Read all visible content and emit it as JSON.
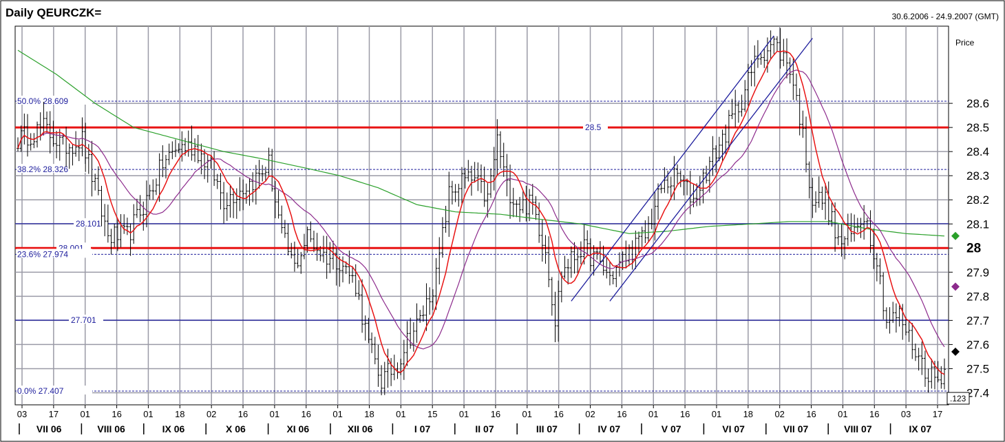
{
  "chart_data": {
    "type": "line",
    "subtype": "ohlc-bars",
    "title": "Daily QEURCZK=",
    "date_range": "30.6.2006 - 24.9.2007 (GMT)",
    "ylabel": "Price",
    "ylim": [
      27.35,
      28.92
    ],
    "y_ticks": [
      "27.4",
      "27.5",
      "27.6",
      "27.7",
      "27.8",
      "27.9",
      "28",
      "28.1",
      "28.2",
      "28.3",
      "28.4",
      "28.5",
      "28.6"
    ],
    "y_tick_values": [
      27.4,
      27.5,
      27.6,
      27.7,
      27.8,
      27.9,
      28.0,
      28.1,
      28.2,
      28.3,
      28.4,
      28.5,
      28.6
    ],
    "bold_tick": "28",
    "x_days": [
      "03",
      "17",
      "01",
      "16",
      "01",
      "18",
      "02",
      "16",
      "01",
      "16",
      "01",
      "18",
      "01",
      "15",
      "01",
      "16",
      "01",
      "16",
      "02",
      "16",
      "01",
      "16",
      "01",
      "18",
      "02",
      "16",
      "01",
      "16",
      "03",
      "17"
    ],
    "x_months": [
      "VII 06",
      "VIII 06",
      "IX 06",
      "X 06",
      "XI 06",
      "XII 06",
      "I 07",
      "II 07",
      "III 07",
      "IV 07",
      "V 07",
      "VI 07",
      "VII 07",
      "VIII 07",
      "IX 07"
    ],
    "corner_label": ".123",
    "grid": true,
    "price_anchors": [
      [
        0,
        28.45
      ],
      [
        8,
        28.5
      ],
      [
        14,
        28.42
      ],
      [
        20,
        28.45
      ],
      [
        24,
        28.25
      ],
      [
        28,
        28.05
      ],
      [
        34,
        28.05
      ],
      [
        40,
        28.2
      ],
      [
        45,
        28.35
      ],
      [
        50,
        28.42
      ],
      [
        55,
        28.42
      ],
      [
        60,
        28.33
      ],
      [
        64,
        28.2
      ],
      [
        70,
        28.25
      ],
      [
        75,
        28.3
      ],
      [
        78,
        28.35
      ],
      [
        82,
        28.05
      ],
      [
        86,
        27.92
      ],
      [
        90,
        28.05
      ],
      [
        95,
        27.97
      ],
      [
        100,
        27.95
      ],
      [
        105,
        27.85
      ],
      [
        109,
        27.6
      ],
      [
        113,
        27.45
      ],
      [
        118,
        27.52
      ],
      [
        121,
        27.62
      ],
      [
        125,
        27.7
      ],
      [
        130,
        27.88
      ],
      [
        134,
        28.22
      ],
      [
        138,
        28.28
      ],
      [
        142,
        28.28
      ],
      [
        146,
        28.2
      ],
      [
        149,
        28.45
      ],
      [
        152,
        28.25
      ],
      [
        156,
        28.18
      ],
      [
        160,
        28.18
      ],
      [
        164,
        28.0
      ],
      [
        167,
        27.7
      ],
      [
        169,
        27.9
      ],
      [
        175,
        28.0
      ],
      [
        180,
        27.95
      ],
      [
        184,
        27.88
      ],
      [
        190,
        27.98
      ],
      [
        195,
        28.05
      ],
      [
        200,
        28.25
      ],
      [
        205,
        28.3
      ],
      [
        210,
        28.2
      ],
      [
        215,
        28.35
      ],
      [
        220,
        28.48
      ],
      [
        225,
        28.62
      ],
      [
        230,
        28.8
      ],
      [
        235,
        28.85
      ],
      [
        240,
        28.75
      ],
      [
        243,
        28.55
      ],
      [
        247,
        28.2
      ],
      [
        251,
        28.2
      ],
      [
        255,
        28.02
      ],
      [
        259,
        28.05
      ],
      [
        263,
        28.15
      ],
      [
        267,
        27.95
      ],
      [
        270,
        27.7
      ],
      [
        274,
        27.72
      ],
      [
        278,
        27.6
      ],
      [
        282,
        27.5
      ],
      [
        286,
        27.45
      ],
      [
        288,
        27.5
      ]
    ],
    "series": [
      {
        "name": "",
        "role": "price",
        "color": "#000000"
      },
      {
        "name": "",
        "role": "ma-fast",
        "color": "#e81212"
      },
      {
        "name": "",
        "role": "ma-mid",
        "color": "#8c2a8c"
      },
      {
        "name": "",
        "role": "ma-slow",
        "color": "#2aa02a"
      }
    ],
    "ma_slow_anchors": [
      [
        0,
        28.82
      ],
      [
        12,
        28.72
      ],
      [
        24,
        28.6
      ],
      [
        36,
        28.5
      ],
      [
        50,
        28.45
      ],
      [
        64,
        28.4
      ],
      [
        76,
        28.37
      ],
      [
        90,
        28.33
      ],
      [
        100,
        28.3
      ],
      [
        112,
        28.25
      ],
      [
        124,
        28.18
      ],
      [
        136,
        28.15
      ],
      [
        150,
        28.14
      ],
      [
        162,
        28.12
      ],
      [
        175,
        28.1
      ],
      [
        190,
        28.06
      ],
      [
        202,
        28.07
      ],
      [
        215,
        28.09
      ],
      [
        228,
        28.1
      ],
      [
        240,
        28.11
      ],
      [
        252,
        28.11
      ],
      [
        264,
        28.08
      ],
      [
        276,
        28.06
      ],
      [
        288,
        28.05
      ]
    ],
    "markers": [
      {
        "value": 28.05,
        "color": "#2aa02a"
      },
      {
        "value": 27.84,
        "color": "#8c2a8c"
      },
      {
        "value": 27.57,
        "color": "#000000"
      }
    ],
    "horizontal_levels": [
      {
        "value": 28.5,
        "label": "28.5",
        "color": "#e81212",
        "style": "thick"
      },
      {
        "value": 28.0,
        "label": "28.001",
        "color": "#e81212",
        "style": "thick"
      },
      {
        "value": 28.101,
        "label": "28.101",
        "color": "#1c1c9c",
        "style": "solid"
      },
      {
        "value": 27.701,
        "label": "27.701",
        "color": "#1c1c9c",
        "style": "solid"
      }
    ],
    "fibonacci_levels": [
      {
        "value": 28.609,
        "pct": "50.0%",
        "label": "28.609"
      },
      {
        "value": 28.326,
        "pct": "38.2%",
        "label": "28.326"
      },
      {
        "value": 27.974,
        "pct": "23.6%",
        "label": "27.974"
      },
      {
        "value": 27.407,
        "pct": "0.0%",
        "label": "27.407"
      }
    ],
    "trend_channel": [
      {
        "from": [
          172,
          27.78
        ],
        "to": [
          235,
          28.88
        ]
      },
      {
        "from": [
          184,
          27.78
        ],
        "to": [
          247,
          28.87
        ]
      }
    ]
  }
}
